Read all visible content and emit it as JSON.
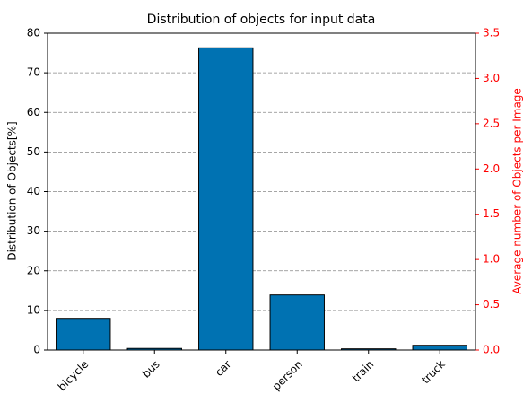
{
  "chart_data": {
    "type": "bar",
    "title": "Distribution of objects for input data",
    "categories": [
      "bicycle",
      "bus",
      "car",
      "person",
      "train",
      "truck"
    ],
    "values": [
      8.0,
      0.4,
      76.3,
      13.9,
      0.3,
      1.2
    ],
    "color": "#0072b2",
    "ylabel": "Distribution of Objects[%]",
    "ylim": [
      0,
      80
    ],
    "yticks": [
      0,
      10,
      20,
      30,
      40,
      50,
      60,
      70,
      80
    ],
    "grid": true,
    "y2label": "Average number of Objects per Image",
    "y2color": "#ff0000",
    "y2lim": [
      0,
      3.5
    ],
    "y2ticks": [
      {
        "value": 0,
        "label": "0.0"
      },
      {
        "value": 0.5,
        "label": "0.5"
      },
      {
        "value": 1,
        "label": "1.0"
      },
      {
        "value": 1.5,
        "label": "1.5"
      },
      {
        "value": 2,
        "label": "2.0"
      },
      {
        "value": 2.5,
        "label": "2.5"
      },
      {
        "value": 3,
        "label": "3.0"
      },
      {
        "value": 3.5,
        "label": "3.5"
      }
    ]
  }
}
